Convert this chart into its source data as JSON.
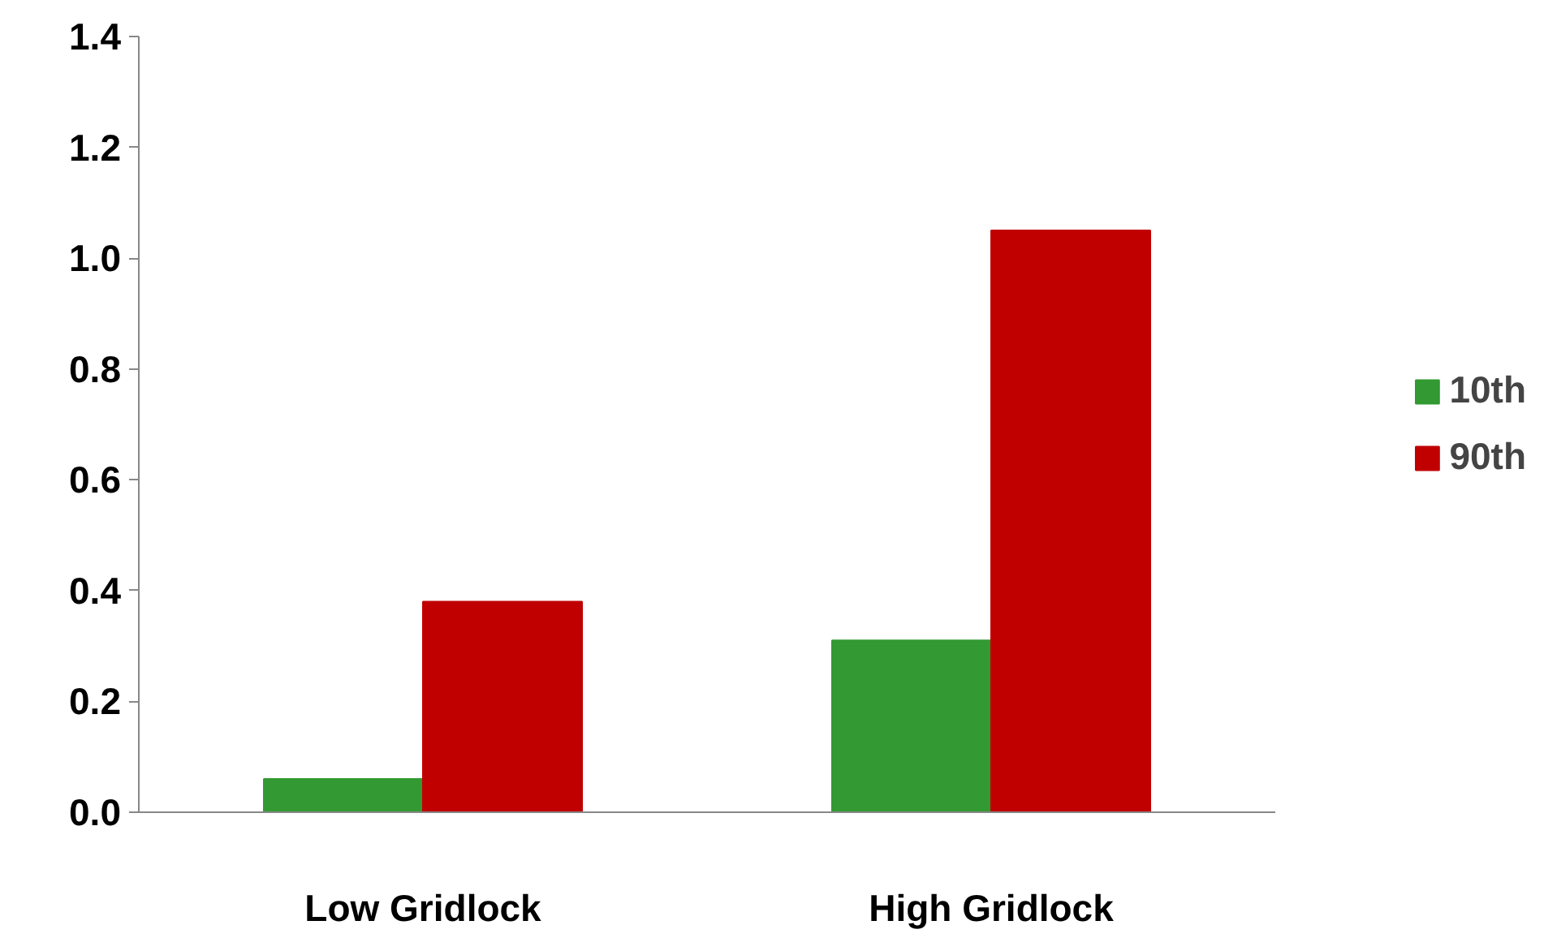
{
  "chart_data": {
    "type": "bar",
    "categories": [
      "Low Gridlock",
      "High Gridlock"
    ],
    "series": [
      {
        "name": "10th",
        "color": "#339933",
        "values": [
          0.06,
          0.31
        ]
      },
      {
        "name": "90th",
        "color": "#c00000",
        "values": [
          0.38,
          1.05
        ]
      }
    ],
    "ylim": [
      0,
      1.4
    ],
    "yticks": [
      {
        "value": 0,
        "label": "0.0"
      },
      {
        "value": 0.2,
        "label": "0.2"
      },
      {
        "value": 0.4,
        "label": "0.4"
      },
      {
        "value": 0.6,
        "label": "0.6"
      },
      {
        "value": 0.8,
        "label": "0.8"
      },
      {
        "value": 1.0,
        "label": "1.0"
      },
      {
        "value": 1.2,
        "label": "1.2"
      },
      {
        "value": 1.4,
        "label": "1.4"
      }
    ],
    "grid": false,
    "legend": "right"
  }
}
